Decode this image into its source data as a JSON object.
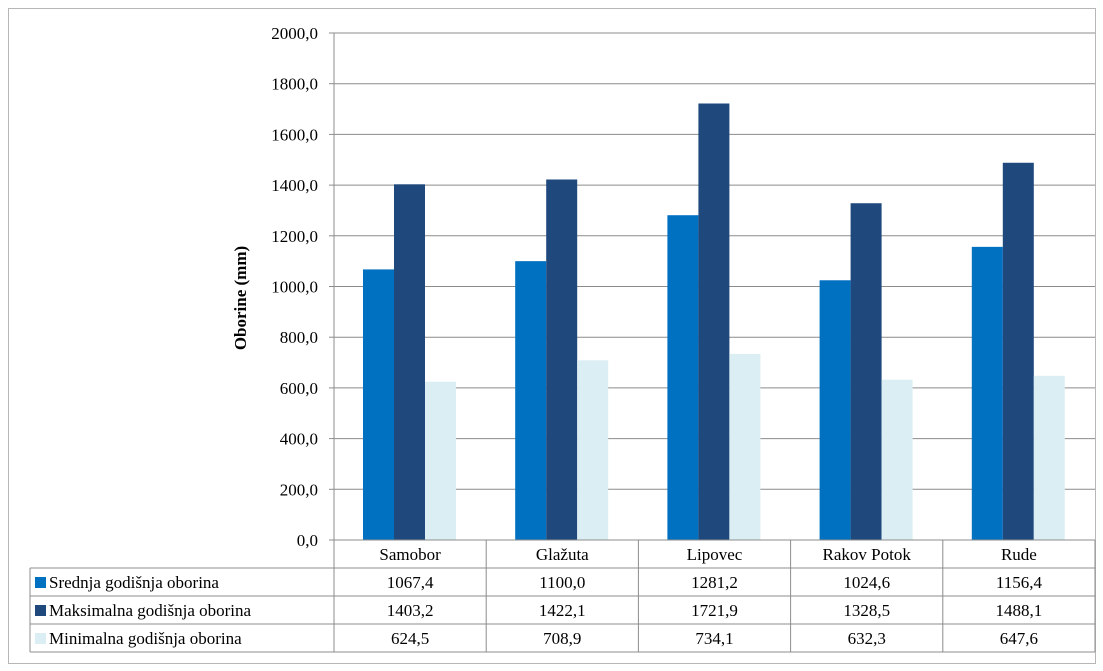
{
  "chart_data": {
    "type": "bar",
    "title": "",
    "xlabel": "",
    "ylabel": "Oborine (mm)",
    "ylim": [
      0,
      2000
    ],
    "ytick_step": 200,
    "grid": true,
    "legend": "data-table",
    "categories": [
      "Samobor",
      "Glažuta",
      "Lipovec",
      "Rakov Potok",
      "Rude"
    ],
    "series": [
      {
        "name": "Srednja godišnja oborina",
        "color": "#0070c0",
        "values": [
          1067.4,
          1100.0,
          1281.2,
          1024.6,
          1156.4
        ],
        "labels": [
          "1067,4",
          "1100,0",
          "1281,2",
          "1024,6",
          "1156,4"
        ]
      },
      {
        "name": "Maksimalna godišnja oborina",
        "color": "#1f497d",
        "values": [
          1403.2,
          1422.1,
          1721.9,
          1328.5,
          1488.1
        ],
        "labels": [
          "1403,2",
          "1422,1",
          "1721,9",
          "1328,5",
          "1488,1"
        ]
      },
      {
        "name": "Minimalna godišnja oborina",
        "color": "#dbeef4",
        "values": [
          624.5,
          708.9,
          734.1,
          632.3,
          647.6
        ],
        "labels": [
          "624,5",
          "708,9",
          "734,1",
          "632,3",
          "647,6"
        ]
      }
    ]
  }
}
